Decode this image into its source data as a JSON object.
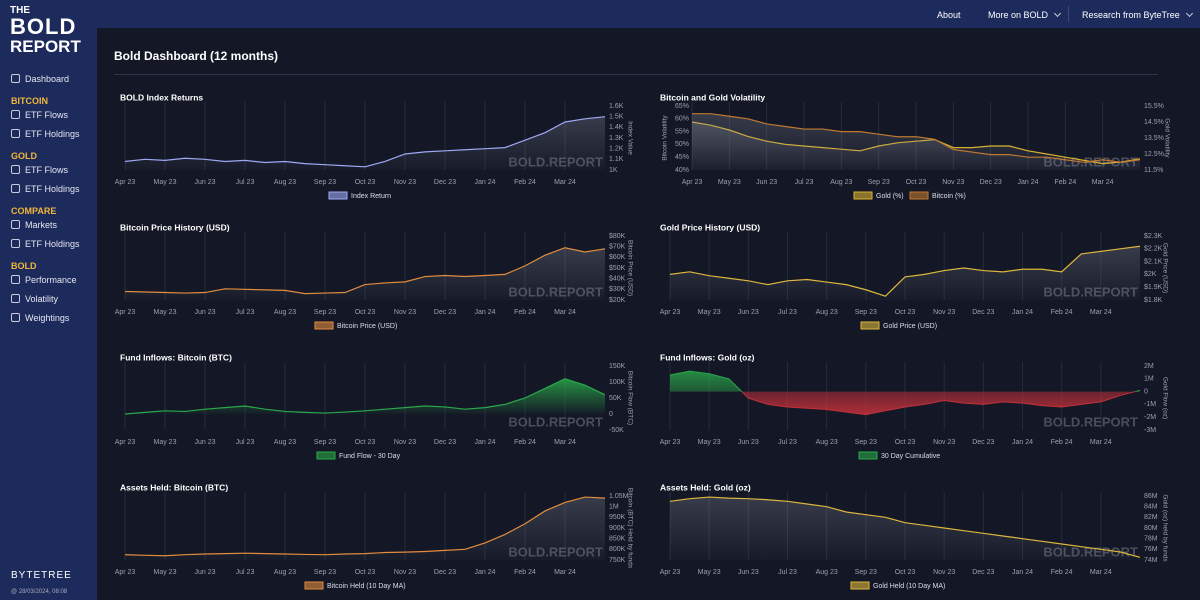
{
  "page": {
    "logo": [
      "THE",
      "BOLD",
      "REPORT"
    ],
    "nav": [
      "About",
      "More on BOLD",
      "Research from ByteTree"
    ],
    "title": "Bold Dashboard (12 months)",
    "sidebar": [
      {
        "heading": null,
        "items": [
          "Dashboard"
        ]
      },
      {
        "heading": "BITCOIN",
        "items": [
          "ETF Flows",
          "ETF Holdings"
        ]
      },
      {
        "heading": "GOLD",
        "items": [
          "ETF Flows",
          "ETF Holdings"
        ]
      },
      {
        "heading": "COMPARE",
        "items": [
          "Markets",
          "ETF Holdings"
        ]
      },
      {
        "heading": "BOLD",
        "items": [
          "Performance",
          "Volatility",
          "Weightings"
        ]
      }
    ],
    "brand": "BYTETREE",
    "timestamp": "@ 28/03/2024, 08:08"
  },
  "chart_data": [
    {
      "type": "line",
      "title": "BOLD Index Returns",
      "ylabel": "Index Value",
      "watermark": "BOLD.REPORT",
      "categories": [
        "Apr 23",
        null,
        "May 23",
        null,
        "Jun 23",
        null,
        "Jul 23",
        null,
        "Aug 23",
        null,
        "Sep 23",
        null,
        "Oct 23",
        null,
        "Nov 23",
        null,
        "Dec 23",
        null,
        "Jan 24",
        null,
        "Feb 24",
        null,
        "Mar 24",
        null,
        null
      ],
      "series": [
        {
          "name": "Index Return",
          "color": "#9ea8f5",
          "values": [
            1080,
            1100,
            1090,
            1110,
            1100,
            1080,
            1090,
            1070,
            1080,
            1060,
            1050,
            1040,
            1030,
            1080,
            1150,
            1170,
            1180,
            1190,
            1200,
            1210,
            1280,
            1350,
            1450,
            1480,
            1500
          ]
        }
      ],
      "ylim": [
        1000,
        1600
      ],
      "yticks": [
        {
          "value": 1000,
          "label": "1K"
        },
        {
          "value": 1100,
          "label": "1.1K"
        },
        {
          "value": 1200,
          "label": "1.2K"
        },
        {
          "value": 1300,
          "label": "1.3K"
        },
        {
          "value": 1400,
          "label": "1.4K"
        },
        {
          "value": 1500,
          "label": "1.5K"
        },
        {
          "value": 1600,
          "label": "1.6K"
        }
      ]
    },
    {
      "type": "line",
      "title": "Bitcoin and Gold Volatility",
      "ylabel": "Bitcoin Volatility",
      "y2label": "Gold Volatility",
      "watermark": "BOLD.REPORT",
      "categories": [
        "Apr 23",
        null,
        "May 23",
        null,
        "Jun 23",
        null,
        "Jul 23",
        null,
        "Aug 23",
        null,
        "Sep 23",
        null,
        "Oct 23",
        null,
        "Nov 23",
        null,
        "Dec 23",
        null,
        "Jan 24",
        null,
        "Feb 24",
        null,
        "Mar 24",
        null,
        null
      ],
      "series": [
        {
          "name": "Gold (%)",
          "color": "#d8b030",
          "axis": "y2",
          "values": [
            14.5,
            14.3,
            14,
            13.6,
            13.3,
            13.1,
            13,
            12.9,
            12.8,
            12.7,
            13,
            13.2,
            13.3,
            13.4,
            12.9,
            12.9,
            13,
            13,
            12.7,
            12.5,
            12.3,
            12.1,
            11.9,
            12,
            12.2
          ]
        },
        {
          "name": "Bitcoin (%)",
          "color": "#c07830",
          "values": [
            62,
            62,
            61,
            60,
            58,
            57,
            56,
            56,
            55,
            55,
            54,
            53,
            53,
            52,
            48,
            47,
            46,
            46,
            45,
            45,
            44,
            43,
            44,
            43,
            44
          ]
        }
      ],
      "ylim": [
        40,
        65
      ],
      "yticks": [
        {
          "value": 40,
          "label": "40%"
        },
        {
          "value": 45,
          "label": "45%"
        },
        {
          "value": 50,
          "label": "50%"
        },
        {
          "value": 55,
          "label": "55%"
        },
        {
          "value": 60,
          "label": "60%"
        },
        {
          "value": 65,
          "label": "65%"
        }
      ],
      "y2lim": [
        11.5,
        15.5
      ],
      "y2ticks": [
        {
          "value": 11.5,
          "label": "11.5%"
        },
        {
          "value": 12.5,
          "label": "12.5%"
        },
        {
          "value": 13.5,
          "label": "13.5%"
        },
        {
          "value": 14.5,
          "label": "14.5%"
        },
        {
          "value": 15.5,
          "label": "15.5%"
        }
      ]
    },
    {
      "type": "line",
      "title": "Bitcoin Price History (USD)",
      "ylabel": "Bitcoin Price (USD)",
      "watermark": "BOLD.REPORT",
      "categories": [
        "Apr 23",
        null,
        "May 23",
        null,
        "Jun 23",
        null,
        "Jul 23",
        null,
        "Aug 23",
        null,
        "Sep 23",
        null,
        "Oct 23",
        null,
        "Nov 23",
        null,
        "Dec 23",
        null,
        "Jan 24",
        null,
        "Feb 24",
        null,
        "Mar 24",
        null,
        null
      ],
      "series": [
        {
          "name": "Bitcoin Price (USD)",
          "color": "#e38c3e",
          "values": [
            28000,
            27500,
            27000,
            26500,
            27000,
            30500,
            30000,
            29500,
            29000,
            26000,
            26500,
            27000,
            34500,
            36000,
            37000,
            42000,
            43000,
            42000,
            43000,
            44000,
            52000,
            62000,
            69000,
            65000,
            68000
          ]
        }
      ],
      "ylim": [
        20000,
        80000
      ],
      "yticks": [
        {
          "value": 20000,
          "label": "$20K"
        },
        {
          "value": 30000,
          "label": "$30K"
        },
        {
          "value": 40000,
          "label": "$40K"
        },
        {
          "value": 50000,
          "label": "$50K"
        },
        {
          "value": 60000,
          "label": "$60K"
        },
        {
          "value": 70000,
          "label": "$70K"
        },
        {
          "value": 80000,
          "label": "$80K"
        }
      ]
    },
    {
      "type": "line",
      "title": "Gold Price History (USD)",
      "ylabel": "Gold Price (USD)",
      "watermark": "BOLD.REPORT",
      "categories": [
        "Apr 23",
        null,
        "May 23",
        null,
        "Jun 23",
        null,
        "Jul 23",
        null,
        "Aug 23",
        null,
        "Sep 23",
        null,
        "Oct 23",
        null,
        "Nov 23",
        null,
        "Dec 23",
        null,
        "Jan 24",
        null,
        "Feb 24",
        null,
        "Mar 24",
        null,
        null
      ],
      "series": [
        {
          "name": "Gold Price (USD)",
          "color": "#dcb63c",
          "values": [
            2000,
            2020,
            1990,
            1970,
            1950,
            1920,
            1950,
            1960,
            1940,
            1920,
            1880,
            1830,
            1980,
            2000,
            2030,
            2050,
            2030,
            2020,
            2040,
            2040,
            2020,
            2160,
            2180,
            2200,
            2220
          ]
        }
      ],
      "ylim": [
        1800,
        2300
      ],
      "yticks": [
        {
          "value": 1800,
          "label": "$1.8K"
        },
        {
          "value": 1900,
          "label": "$1.9K"
        },
        {
          "value": 2000,
          "label": "$2K"
        },
        {
          "value": 2100,
          "label": "$2.1K"
        },
        {
          "value": 2200,
          "label": "$2.2K"
        },
        {
          "value": 2300,
          "label": "$2.3K"
        }
      ]
    },
    {
      "type": "area",
      "title": "Fund Inflows: Bitcoin (BTC)",
      "ylabel": "Bitcoin Flow (BTC)",
      "watermark": "BOLD.REPORT",
      "categories": [
        "Apr 23",
        null,
        "May 23",
        null,
        "Jun 23",
        null,
        "Jul 23",
        null,
        "Aug 23",
        null,
        "Sep 23",
        null,
        "Oct 23",
        null,
        "Nov 23",
        null,
        "Dec 23",
        null,
        "Jan 24",
        null,
        "Feb 24",
        null,
        "Mar 24",
        null,
        null
      ],
      "series": [
        {
          "name": "Fund Flow - 30 Day",
          "color": "#2aa84a",
          "values": [
            0,
            5000,
            10000,
            8000,
            15000,
            20000,
            25000,
            15000,
            8000,
            5000,
            3000,
            6000,
            10000,
            15000,
            20000,
            25000,
            22000,
            15000,
            20000,
            30000,
            50000,
            80000,
            110000,
            90000,
            60000
          ]
        }
      ],
      "ylim": [
        -50000,
        150000
      ],
      "yticks": [
        {
          "value": -50000,
          "label": "-50K"
        },
        0,
        {
          "value": 50000,
          "label": "50K"
        },
        {
          "value": 100000,
          "label": "100K"
        },
        {
          "value": 150000,
          "label": "150K"
        }
      ]
    },
    {
      "type": "area",
      "title": "Fund Inflows: Gold (oz)",
      "ylabel": "Gold Flow (oz)",
      "watermark": "BOLD.REPORT",
      "categories": [
        "Apr 23",
        null,
        "May 23",
        null,
        "Jun 23",
        null,
        "Jul 23",
        null,
        "Aug 23",
        null,
        "Sep 23",
        null,
        "Oct 23",
        null,
        "Nov 23",
        null,
        "Dec 23",
        null,
        "Jan 24",
        null,
        "Feb 24",
        null,
        "Mar 24",
        null,
        null
      ],
      "series": [
        {
          "name": "30 Day Cumulative",
          "color": "#2aa84a",
          "negative_color": "#c0303a",
          "values": [
            1300000,
            1600000,
            1400000,
            1000000,
            -500000,
            -1000000,
            -1200000,
            -1300000,
            -1400000,
            -1600000,
            -1800000,
            -1500000,
            -1200000,
            -1000000,
            -700000,
            -900000,
            -1000000,
            -800000,
            -900000,
            -1100000,
            -1200000,
            -1000000,
            -800000,
            -300000,
            100000
          ]
        }
      ],
      "ylim": [
        -3000000,
        2000000
      ],
      "yticks": [
        {
          "value": -3000000,
          "label": "-3M"
        },
        {
          "value": -2000000,
          "label": "-2M"
        },
        {
          "value": -1000000,
          "label": "-1M"
        },
        0,
        {
          "value": 1000000,
          "label": "1M"
        },
        {
          "value": 2000000,
          "label": "2M"
        }
      ]
    },
    {
      "type": "line",
      "title": "Assets Held: Bitcoin (BTC)",
      "ylabel": "Bitcoin (BTC) Held by funds",
      "watermark": "BOLD.REPORT",
      "categories": [
        "Apr 23",
        null,
        "May 23",
        null,
        "Jun 23",
        null,
        "Jul 23",
        null,
        "Aug 23",
        null,
        "Sep 23",
        null,
        "Oct 23",
        null,
        "Nov 23",
        null,
        "Dec 23",
        null,
        "Jan 24",
        null,
        "Feb 24",
        null,
        "Mar 24",
        null,
        null
      ],
      "series": [
        {
          "name": "Bitcoin Held (10 Day MA)",
          "color": "#e38c3e",
          "values": [
            775000,
            772000,
            770000,
            775000,
            778000,
            780000,
            782000,
            780000,
            778000,
            776000,
            775000,
            778000,
            780000,
            785000,
            787000,
            790000,
            795000,
            800000,
            830000,
            870000,
            920000,
            980000,
            1020000,
            1045000,
            1040000
          ]
        }
      ],
      "ylim": [
        750000,
        1050000
      ],
      "yticks": [
        {
          "value": 750000,
          "label": "750K"
        },
        {
          "value": 800000,
          "label": "800K"
        },
        {
          "value": 850000,
          "label": "850K"
        },
        {
          "value": 900000,
          "label": "900K"
        },
        {
          "value": 950000,
          "label": "950K"
        },
        {
          "value": 1000000,
          "label": "1M"
        },
        {
          "value": 1050000,
          "label": "1.05M"
        }
      ]
    },
    {
      "type": "line",
      "title": "Assets Held: Gold (oz)",
      "ylabel": "Gold (oz) held by funds",
      "watermark": "BOLD.REPORT",
      "categories": [
        "Apr 23",
        null,
        "May 23",
        null,
        "Jun 23",
        null,
        "Jul 23",
        null,
        "Aug 23",
        null,
        "Sep 23",
        null,
        "Oct 23",
        null,
        "Nov 23",
        null,
        "Dec 23",
        null,
        "Jan 24",
        null,
        "Feb 24",
        null,
        "Mar 24",
        null,
        null
      ],
      "series": [
        {
          "name": "Gold Held (10 Day MA)",
          "color": "#dcb63c",
          "values": [
            85000000,
            85500000,
            85800000,
            85600000,
            85500000,
            85300000,
            85000000,
            84500000,
            84000000,
            83000000,
            82500000,
            82000000,
            81000000,
            80500000,
            80000000,
            79500000,
            79000000,
            78500000,
            78000000,
            77500000,
            77000000,
            76500000,
            76000000,
            75500000,
            74500000
          ]
        }
      ],
      "ylim": [
        74000000,
        86000000
      ],
      "yticks": [
        {
          "value": 74000000,
          "label": "74M"
        },
        {
          "value": 76000000,
          "label": "76M"
        },
        {
          "value": 78000000,
          "label": "78M"
        },
        {
          "value": 80000000,
          "label": "80M"
        },
        {
          "value": 82000000,
          "label": "82M"
        },
        {
          "value": 84000000,
          "label": "84M"
        },
        {
          "value": 86000000,
          "label": "86M"
        }
      ]
    }
  ]
}
